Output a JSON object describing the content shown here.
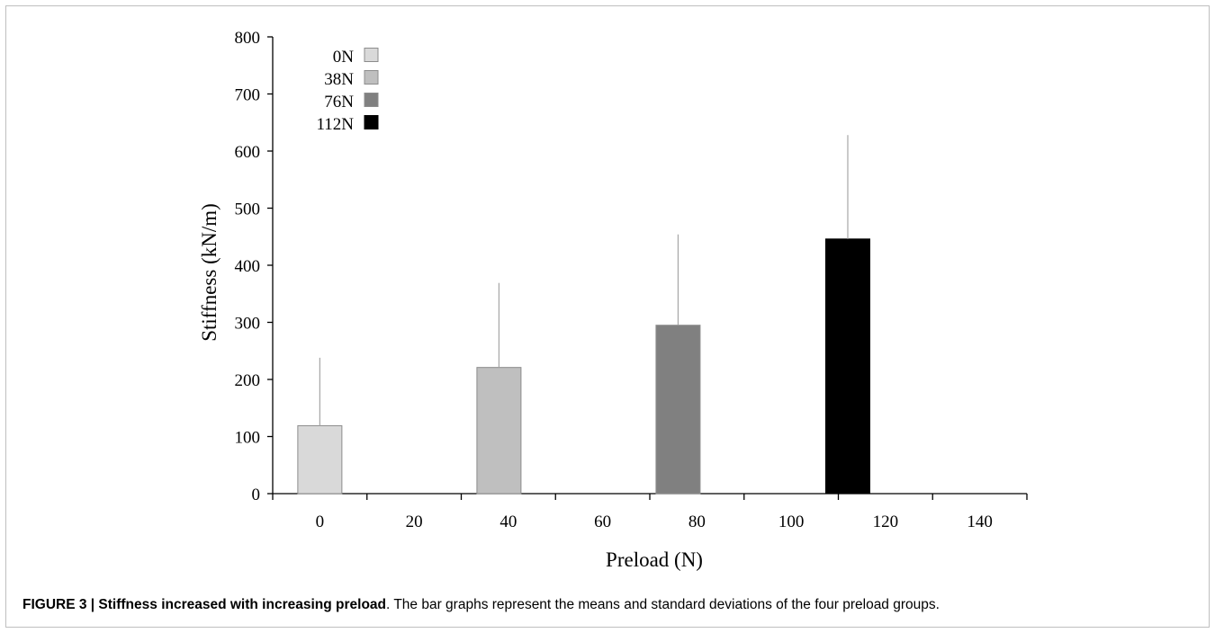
{
  "chart_data": {
    "type": "bar",
    "xlabel": "Preload (N)",
    "ylabel": "Stiffness (kN/m)",
    "xlim": [
      -10,
      150
    ],
    "ylim": [
      0,
      800
    ],
    "x_ticks": [
      0,
      20,
      40,
      60,
      80,
      100,
      120,
      140
    ],
    "y_ticks": [
      0,
      100,
      200,
      300,
      400,
      500,
      600,
      700,
      800
    ],
    "legend_position": "top-left",
    "series": [
      {
        "name": "0N",
        "x": 0,
        "value": 119,
        "sd": 119,
        "color": "#d9d9d9"
      },
      {
        "name": "38N",
        "x": 38,
        "value": 221,
        "sd": 148,
        "color": "#bfbfbf"
      },
      {
        "name": "76N",
        "x": 76,
        "value": 295,
        "sd": 159,
        "color": "#808080"
      },
      {
        "name": "112N",
        "x": 112,
        "value": 446,
        "sd": 182,
        "color": "#000000"
      }
    ]
  },
  "caption": {
    "label": "FIGURE 3 | Stiffness increased with increasing preload",
    "text": ". The bar graphs represent the means and standard deviations of the four preload groups."
  }
}
